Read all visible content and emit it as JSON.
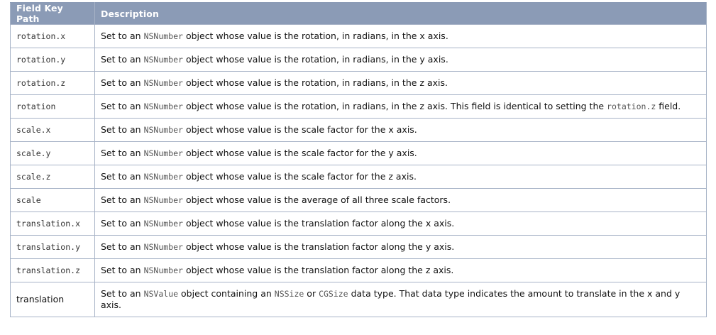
{
  "header": {
    "col1": "Field Key Path",
    "col2": "Description"
  },
  "rows": [
    {
      "key": "rotation.x",
      "desc": {
        "pre": "Set to an ",
        "code": "NSNumber",
        "post": " object whose value is the rotation, in radians, in the x axis."
      }
    },
    {
      "key": "rotation.y",
      "desc": {
        "pre": "Set to an ",
        "code": "NSNumber",
        "post": " object whose value is the rotation, in radians, in the y axis."
      }
    },
    {
      "key": "rotation.z",
      "desc": {
        "pre": "Set to an ",
        "code": "NSNumber",
        "post": " object whose value is the rotation, in radians, in the z axis."
      }
    },
    {
      "key": "rotation",
      "desc": {
        "pre": "Set to an ",
        "code": "NSNumber",
        "post": " object whose value is the rotation, in radians, in the z axis. This field is identical to setting the ",
        "code2": "rotation.z",
        "post2": " field."
      }
    },
    {
      "key": "scale.x",
      "desc": {
        "pre": "Set to an ",
        "code": "NSNumber",
        "post": " object whose value is the scale factor for the x axis."
      }
    },
    {
      "key": "scale.y",
      "desc": {
        "pre": "Set to an ",
        "code": "NSNumber",
        "post": " object whose value is the scale factor for the y axis."
      }
    },
    {
      "key": "scale.z",
      "desc": {
        "pre": "Set to an ",
        "code": "NSNumber",
        "post": " object whose value is the scale factor for the z axis."
      }
    },
    {
      "key": "scale",
      "desc": {
        "pre": "Set to an ",
        "code": "NSNumber",
        "post": " object whose value is the average of all three scale factors."
      }
    },
    {
      "key": "translation.x",
      "desc": {
        "pre": "Set to an ",
        "code": "NSNumber",
        "post": " object whose value is the translation factor along the x axis."
      }
    },
    {
      "key": "translation.y",
      "desc": {
        "pre": "Set to an ",
        "code": "NSNumber",
        "post": " object whose value is the translation factor along the y axis."
      }
    },
    {
      "key": "translation.z",
      "desc": {
        "pre": "Set to an ",
        "code": "NSNumber",
        "post": " object whose value is the translation factor along the z axis."
      }
    },
    {
      "key": "translation",
      "desc": {
        "pre": "Set to an ",
        "code": "NSValue",
        "post": " object containing an ",
        "code2": "NSSize",
        "post2": " or ",
        "code3": "CGSize",
        "post3": " data type. That data type indicates the amount to translate in the x and y axis."
      }
    }
  ],
  "colors": {
    "header_bg": "#8b9bb6",
    "header_text": "#ffffff",
    "border": "#a7b3c7",
    "code_text": "#555555"
  }
}
